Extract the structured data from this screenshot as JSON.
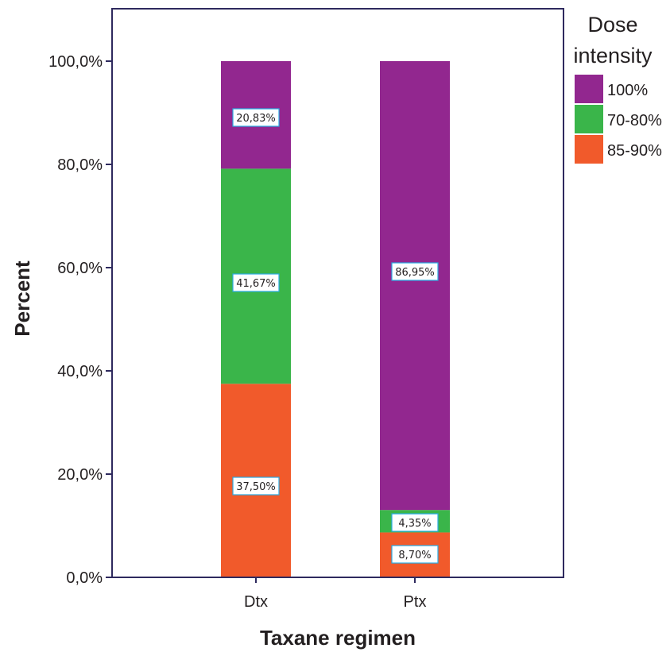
{
  "chart_data": {
    "type": "bar",
    "stacked": true,
    "percent": true,
    "categories": [
      "Dtx",
      "Ptx"
    ],
    "series": [
      {
        "name": "85-90%",
        "color": "#f15a2b",
        "values": [
          37.5,
          8.7
        ],
        "labels": [
          "37,50%",
          "8,70%"
        ]
      },
      {
        "name": "70-80%",
        "color": "#3ab54a",
        "values": [
          41.67,
          4.35
        ],
        "labels": [
          "41,67%",
          "4,35%"
        ]
      },
      {
        "name": "100%",
        "color": "#92278f",
        "values": [
          20.83,
          86.95
        ],
        "labels": [
          "20,83%",
          "86,95%"
        ]
      }
    ],
    "legend_order": [
      "100%",
      "70-80%",
      "85-90%"
    ],
    "legend_title_lines": [
      "Dose",
      "intensity"
    ],
    "xlabel": "Taxane regimen",
    "ylabel": "Percent",
    "ylim": [
      0,
      100
    ],
    "yticks": [
      0,
      20,
      40,
      60,
      80,
      100
    ],
    "ytick_labels": [
      "0,0%",
      "20,0%",
      "40,0%",
      "60,0%",
      "80,0%",
      "100,0%"
    ],
    "frame_color": "#2e2a5e",
    "grid": false,
    "legend_position": "right"
  }
}
